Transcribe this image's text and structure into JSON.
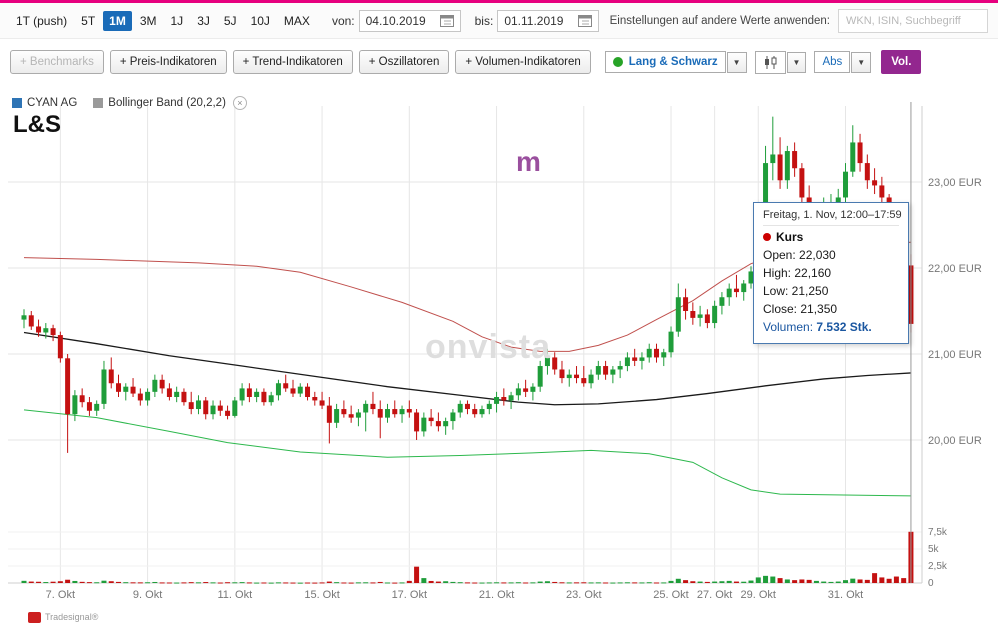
{
  "toolbar": {
    "ranges": [
      {
        "label": "1T (push)",
        "active": false
      },
      {
        "label": "5T",
        "active": false
      },
      {
        "label": "1M",
        "active": true
      },
      {
        "label": "3M",
        "active": false
      },
      {
        "label": "1J",
        "active": false
      },
      {
        "label": "3J",
        "active": false
      },
      {
        "label": "5J",
        "active": false
      },
      {
        "label": "10J",
        "active": false
      },
      {
        "label": "MAX",
        "active": false
      }
    ],
    "von_label": "von:",
    "von_value": "04.10.2019",
    "bis_label": "bis:",
    "bis_value": "01.11.2019",
    "settings_label": "Einstellungen auf andere Werte anwenden:",
    "search_placeholder": "WKN, ISIN, Suchbegriff"
  },
  "indicator_bar": {
    "buttons": [
      {
        "label": "+ Benchmarks",
        "disabled": true
      },
      {
        "label": "+ Preis-Indikatoren",
        "disabled": false
      },
      {
        "label": "+ Trend-Indikatoren",
        "disabled": false
      },
      {
        "label": "+ Oszillatoren",
        "disabled": false
      },
      {
        "label": "+ Volumen-Indikatoren",
        "disabled": false
      }
    ],
    "venue_label": "Lang & Schwarz",
    "abs_label": "Abs",
    "vol_label": "Vol."
  },
  "icons": {
    "dropdown": "▼",
    "close": "×"
  },
  "legend": {
    "series": [
      {
        "label": "CYAN AG",
        "color": "#2e74b5",
        "closable": false
      },
      {
        "label": "Bollinger Band (20,2,2)",
        "color": "#9a9a9a",
        "closable": true
      }
    ]
  },
  "chart_title": "L&S",
  "watermark": "onvista",
  "marker_m": "m",
  "tooltip": {
    "title": "Freitag, 1. Nov, 12:00–17:59",
    "series_label": "Kurs",
    "dot_color": "#cc0000",
    "rows": [
      {
        "label": "Open:",
        "value": "22,030"
      },
      {
        "label": "High:",
        "value": "22,160"
      },
      {
        "label": "Low:",
        "value": "21,250"
      },
      {
        "label": "Close:",
        "value": "21,350"
      }
    ],
    "volume_label": "Volumen:",
    "volume_value": "7.532 Stk."
  },
  "footer": {
    "brand": "Tradesignal®"
  },
  "chart_data": {
    "type": "candlestick",
    "instrument": "CYAN AG",
    "venue": "L&S",
    "currency": "EUR",
    "overlay": "Bollinger Band (20,2,2)",
    "price_ticks": [
      {
        "label": "23,00 EUR",
        "value": 23
      },
      {
        "label": "22,00 EUR",
        "value": 22
      },
      {
        "label": "21,00 EUR",
        "value": 21
      },
      {
        "label": "20,00 EUR",
        "value": 20
      }
    ],
    "volume_ticks": [
      {
        "label": "7,5k",
        "value": 7500
      },
      {
        "label": "5k",
        "value": 5000
      },
      {
        "label": "2,5k",
        "value": 2500
      },
      {
        "label": "0",
        "value": 0
      }
    ],
    "x_ticks": [
      {
        "label": "7. Okt",
        "i": 5
      },
      {
        "label": "9. Okt",
        "i": 17
      },
      {
        "label": "11. Okt",
        "i": 29
      },
      {
        "label": "15. Okt",
        "i": 41
      },
      {
        "label": "17. Okt",
        "i": 53
      },
      {
        "label": "21. Okt",
        "i": 65
      },
      {
        "label": "23. Okt",
        "i": 77
      },
      {
        "label": "25. Okt",
        "i": 89
      },
      {
        "label": "27. Okt",
        "i": 95
      },
      {
        "label": "29. Okt",
        "i": 101
      },
      {
        "label": "31. Okt",
        "i": 113
      }
    ],
    "candles": [
      [
        21.4,
        21.52,
        21.3,
        21.45,
        320
      ],
      [
        21.45,
        21.5,
        21.28,
        21.32,
        210
      ],
      [
        21.32,
        21.4,
        21.2,
        21.25,
        180
      ],
      [
        21.25,
        21.36,
        21.18,
        21.3,
        140
      ],
      [
        21.3,
        21.34,
        21.15,
        21.22,
        190
      ],
      [
        21.22,
        21.26,
        20.9,
        20.95,
        260
      ],
      [
        20.95,
        21.0,
        19.85,
        20.3,
        480
      ],
      [
        20.3,
        20.58,
        20.22,
        20.52,
        300
      ],
      [
        20.52,
        20.6,
        20.38,
        20.44,
        170
      ],
      [
        20.44,
        20.5,
        20.28,
        20.34,
        130
      ],
      [
        20.34,
        20.46,
        20.28,
        20.42,
        110
      ],
      [
        20.42,
        20.92,
        20.36,
        20.82,
        340
      ],
      [
        20.82,
        20.96,
        20.6,
        20.66,
        260
      ],
      [
        20.66,
        20.76,
        20.5,
        20.56,
        160
      ],
      [
        20.56,
        20.66,
        20.46,
        20.62,
        120
      ],
      [
        20.62,
        20.72,
        20.5,
        20.54,
        100
      ],
      [
        20.54,
        20.6,
        20.4,
        20.46,
        95
      ],
      [
        20.46,
        20.6,
        20.4,
        20.56,
        110
      ],
      [
        20.56,
        20.76,
        20.5,
        20.7,
        150
      ],
      [
        20.7,
        20.76,
        20.54,
        20.6,
        85
      ],
      [
        20.6,
        20.66,
        20.46,
        20.5,
        75
      ],
      [
        20.5,
        20.62,
        20.44,
        20.56,
        65
      ],
      [
        20.56,
        20.6,
        20.4,
        20.44,
        90
      ],
      [
        20.44,
        20.56,
        20.3,
        20.36,
        125
      ],
      [
        20.36,
        20.52,
        20.3,
        20.46,
        100
      ],
      [
        20.46,
        20.5,
        20.24,
        20.3,
        140
      ],
      [
        20.3,
        20.46,
        20.24,
        20.4,
        95
      ],
      [
        20.4,
        20.46,
        20.28,
        20.34,
        70
      ],
      [
        20.34,
        20.4,
        20.24,
        20.28,
        115
      ],
      [
        20.28,
        20.5,
        20.26,
        20.46,
        105
      ],
      [
        20.46,
        20.66,
        20.4,
        20.6,
        130
      ],
      [
        20.6,
        20.66,
        20.44,
        20.5,
        85
      ],
      [
        20.5,
        20.6,
        20.44,
        20.56,
        60
      ],
      [
        20.56,
        20.6,
        20.4,
        20.44,
        75
      ],
      [
        20.44,
        20.56,
        20.4,
        20.52,
        55
      ],
      [
        20.52,
        20.7,
        20.46,
        20.66,
        95
      ],
      [
        20.66,
        20.76,
        20.56,
        20.6,
        80
      ],
      [
        20.6,
        20.7,
        20.5,
        20.54,
        65
      ],
      [
        20.54,
        20.66,
        20.5,
        20.62,
        50
      ],
      [
        20.62,
        20.66,
        20.46,
        20.5,
        70
      ],
      [
        20.5,
        20.56,
        20.4,
        20.46,
        60
      ],
      [
        20.46,
        20.56,
        20.36,
        20.4,
        85
      ],
      [
        20.4,
        20.5,
        19.96,
        20.2,
        210
      ],
      [
        20.2,
        20.42,
        20.14,
        20.36,
        125
      ],
      [
        20.36,
        20.46,
        20.26,
        20.3,
        75
      ],
      [
        20.3,
        20.4,
        20.2,
        20.26,
        60
      ],
      [
        20.26,
        20.36,
        20.16,
        20.32,
        95
      ],
      [
        20.32,
        20.46,
        20.1,
        20.42,
        105
      ],
      [
        20.42,
        20.56,
        20.3,
        20.36,
        85
      ],
      [
        20.36,
        20.46,
        20.02,
        20.26,
        155
      ],
      [
        20.26,
        20.42,
        20.2,
        20.36,
        75
      ],
      [
        20.36,
        20.46,
        20.26,
        20.3,
        60
      ],
      [
        20.3,
        20.4,
        20.2,
        20.36,
        85
      ],
      [
        20.36,
        20.46,
        20.26,
        20.32,
        310
      ],
      [
        20.32,
        20.36,
        20.0,
        20.1,
        2400
      ],
      [
        20.1,
        20.32,
        20.04,
        20.26,
        720
      ],
      [
        20.26,
        20.36,
        20.16,
        20.22,
        300
      ],
      [
        20.22,
        20.32,
        20.1,
        20.16,
        210
      ],
      [
        20.16,
        20.26,
        20.06,
        20.22,
        260
      ],
      [
        20.22,
        20.36,
        20.12,
        20.32,
        160
      ],
      [
        20.32,
        20.46,
        20.26,
        20.42,
        120
      ],
      [
        20.42,
        20.46,
        20.3,
        20.36,
        90
      ],
      [
        20.36,
        20.42,
        20.26,
        20.3,
        70
      ],
      [
        20.3,
        20.4,
        20.26,
        20.36,
        65
      ],
      [
        20.36,
        20.46,
        20.3,
        20.42,
        85
      ],
      [
        20.42,
        20.56,
        20.32,
        20.5,
        105
      ],
      [
        20.5,
        20.6,
        20.4,
        20.46,
        85
      ],
      [
        20.46,
        20.56,
        20.36,
        20.52,
        90
      ],
      [
        20.52,
        20.66,
        20.46,
        20.6,
        115
      ],
      [
        20.6,
        20.7,
        20.5,
        20.56,
        75
      ],
      [
        20.56,
        20.66,
        20.46,
        20.62,
        95
      ],
      [
        20.62,
        20.92,
        20.56,
        20.86,
        210
      ],
      [
        20.86,
        21.06,
        20.76,
        20.96,
        260
      ],
      [
        20.96,
        21.02,
        20.76,
        20.82,
        155
      ],
      [
        20.82,
        20.92,
        20.66,
        20.72,
        105
      ],
      [
        20.72,
        20.82,
        20.62,
        20.76,
        85
      ],
      [
        20.76,
        20.86,
        20.66,
        20.72,
        95
      ],
      [
        20.72,
        20.86,
        20.62,
        20.66,
        105
      ],
      [
        20.66,
        20.82,
        20.6,
        20.76,
        85
      ],
      [
        20.76,
        20.92,
        20.7,
        20.86,
        95
      ],
      [
        20.86,
        20.92,
        20.7,
        20.76,
        75
      ],
      [
        20.76,
        20.86,
        20.66,
        20.82,
        65
      ],
      [
        20.82,
        20.92,
        20.72,
        20.86,
        85
      ],
      [
        20.86,
        21.02,
        20.8,
        20.96,
        105
      ],
      [
        20.96,
        21.06,
        20.86,
        20.92,
        90
      ],
      [
        20.92,
        21.02,
        20.82,
        20.96,
        85
      ],
      [
        20.96,
        21.12,
        20.9,
        21.06,
        115
      ],
      [
        21.06,
        21.12,
        20.9,
        20.96,
        75
      ],
      [
        20.96,
        21.06,
        20.86,
        21.02,
        85
      ],
      [
        21.02,
        21.32,
        20.96,
        21.26,
        310
      ],
      [
        21.26,
        21.82,
        21.2,
        21.66,
        620
      ],
      [
        21.66,
        21.76,
        21.4,
        21.5,
        420
      ],
      [
        21.5,
        21.6,
        21.34,
        21.42,
        260
      ],
      [
        21.42,
        21.56,
        21.32,
        21.46,
        210
      ],
      [
        21.46,
        21.52,
        21.3,
        21.36,
        160
      ],
      [
        21.36,
        21.62,
        21.3,
        21.56,
        210
      ],
      [
        21.56,
        21.72,
        21.46,
        21.66,
        260
      ],
      [
        21.66,
        21.82,
        21.56,
        21.76,
        310
      ],
      [
        21.76,
        21.92,
        21.66,
        21.72,
        210
      ],
      [
        21.72,
        21.86,
        21.62,
        21.82,
        190
      ],
      [
        21.82,
        22.02,
        21.76,
        21.96,
        360
      ],
      [
        21.96,
        22.62,
        21.92,
        22.52,
        820
      ],
      [
        22.52,
        23.42,
        22.42,
        23.22,
        1050
      ],
      [
        23.22,
        23.76,
        23.02,
        23.32,
        950
      ],
      [
        23.32,
        23.52,
        22.92,
        23.02,
        720
      ],
      [
        23.02,
        23.42,
        22.92,
        23.36,
        520
      ],
      [
        23.36,
        23.46,
        23.06,
        23.16,
        420
      ],
      [
        23.16,
        23.22,
        22.72,
        22.82,
        520
      ],
      [
        22.82,
        22.96,
        22.46,
        22.56,
        460
      ],
      [
        22.56,
        22.76,
        22.42,
        22.66,
        310
      ],
      [
        22.66,
        22.82,
        22.56,
        22.72,
        210
      ],
      [
        22.72,
        22.86,
        22.62,
        22.76,
        160
      ],
      [
        22.76,
        22.92,
        22.66,
        22.82,
        210
      ],
      [
        22.82,
        23.22,
        22.76,
        23.12,
        420
      ],
      [
        23.12,
        23.66,
        23.06,
        23.46,
        640
      ],
      [
        23.46,
        23.56,
        23.12,
        23.22,
        520
      ],
      [
        23.22,
        23.32,
        22.92,
        23.02,
        460
      ],
      [
        23.02,
        23.16,
        22.86,
        22.96,
        1450
      ],
      [
        22.96,
        23.06,
        22.72,
        22.82,
        820
      ],
      [
        22.82,
        22.86,
        22.42,
        22.52,
        620
      ],
      [
        22.52,
        22.62,
        22.12,
        22.16,
        950
      ],
      [
        22.16,
        22.26,
        21.96,
        22.03,
        720
      ],
      [
        22.03,
        22.16,
        21.25,
        21.35,
        7532
      ]
    ],
    "bands": {
      "upper": [
        [
          0,
          22.12
        ],
        [
          10,
          22.1
        ],
        [
          24,
          22.06
        ],
        [
          32,
          22.02
        ],
        [
          38,
          21.95
        ],
        [
          45,
          21.78
        ],
        [
          52,
          21.6
        ],
        [
          59,
          21.38
        ],
        [
          63,
          21.2
        ],
        [
          67,
          21.08
        ],
        [
          71,
          21.03
        ],
        [
          75,
          21.03
        ],
        [
          79,
          21.1
        ],
        [
          83,
          21.22
        ],
        [
          87,
          21.4
        ],
        [
          92,
          21.62
        ],
        [
          96,
          21.85
        ],
        [
          100,
          22.05
        ],
        [
          105,
          22.18
        ],
        [
          112,
          22.27
        ],
        [
          122,
          22.3
        ]
      ],
      "middle": [
        [
          0,
          21.25
        ],
        [
          10,
          21.12
        ],
        [
          20,
          20.98
        ],
        [
          30,
          20.86
        ],
        [
          40,
          20.74
        ],
        [
          50,
          20.62
        ],
        [
          60,
          20.52
        ],
        [
          68,
          20.44
        ],
        [
          73,
          20.41
        ],
        [
          79,
          20.42
        ],
        [
          87,
          20.47
        ],
        [
          94,
          20.54
        ],
        [
          102,
          20.63
        ],
        [
          110,
          20.71
        ],
        [
          116,
          20.75
        ],
        [
          122,
          20.78
        ]
      ],
      "lower": [
        [
          0,
          20.35
        ],
        [
          10,
          20.26
        ],
        [
          20,
          20.1
        ],
        [
          28,
          19.97
        ],
        [
          38,
          19.86
        ],
        [
          50,
          19.8
        ],
        [
          60,
          19.82
        ],
        [
          70,
          19.85
        ],
        [
          78,
          19.88
        ],
        [
          86,
          19.84
        ],
        [
          92,
          19.74
        ],
        [
          96,
          19.56
        ],
        [
          100,
          19.42
        ],
        [
          104,
          19.37
        ],
        [
          122,
          19.35
        ]
      ]
    },
    "crosshair_index": 122,
    "colors": {
      "up": "#1f9d3a",
      "down": "#c41111",
      "band_upper": "#c0504d",
      "band_middle": "#1a1a1a",
      "band_lower": "#2db84d",
      "grid": "#e6e6e6",
      "axis_text": "#777777",
      "crosshair": "#9a9a9a"
    }
  }
}
